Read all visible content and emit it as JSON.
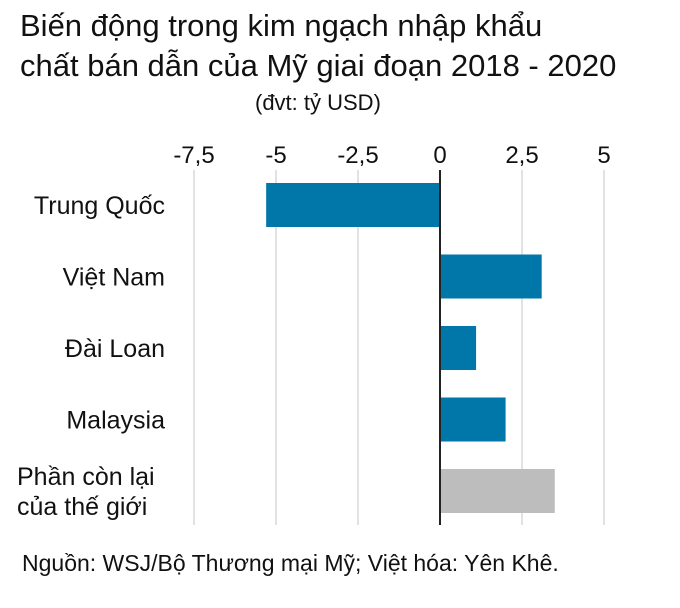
{
  "chart_data": {
    "type": "bar",
    "orientation": "horizontal",
    "title_lines": [
      "Biến động trong kim ngạch nhập khẩu",
      "chất bán dẫn của Mỹ giai đoạn 2018 - 2020"
    ],
    "unit_label": "(đvt: tỷ USD)",
    "categories": [
      {
        "lines": [
          "Trung Quốc"
        ]
      },
      {
        "lines": [
          "Việt Nam"
        ]
      },
      {
        "lines": [
          "Đài Loan"
        ]
      },
      {
        "lines": [
          "Malaysia"
        ]
      },
      {
        "lines": [
          "Phần còn lại",
          "của thế giới"
        ]
      }
    ],
    "values": [
      -5.3,
      3.1,
      1.1,
      2.0,
      3.5
    ],
    "bar_colors": [
      "#0077a8",
      "#0077a8",
      "#0077a8",
      "#0077a8",
      "#bdbdbd"
    ],
    "xlim": [
      -7.5,
      5
    ],
    "ticks": [
      -7.5,
      -5,
      -2.5,
      0,
      2.5,
      5
    ],
    "tick_labels": [
      "-7,5",
      "-5",
      "-2,5",
      "0",
      "2,5",
      "5"
    ],
    "grid": true,
    "axis_position": "top"
  },
  "source": "Nguồn: WSJ/Bộ Thương mại Mỹ; Việt hóa: Yên Khê."
}
